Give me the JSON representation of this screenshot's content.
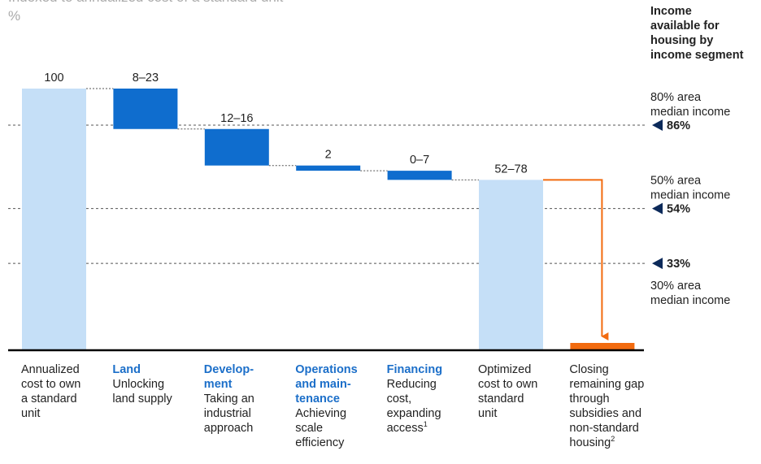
{
  "chart_data": {
    "type": "waterfall",
    "subtitle": [
      "Indexed to annualized cost of a standard unit",
      "%"
    ],
    "side_heading": [
      "Income",
      "available for",
      "housing by",
      "income segment"
    ],
    "categories": [
      {
        "heading": [],
        "lines": [
          "Annualized",
          "cost to own",
          "a standard",
          "unit"
        ]
      },
      {
        "heading": [
          "Land"
        ],
        "lines": [
          "Unlocking",
          "land supply"
        ]
      },
      {
        "heading": [
          "Develop-",
          "ment"
        ],
        "lines": [
          "Taking an",
          "industrial",
          "approach"
        ]
      },
      {
        "heading": [
          "Operations",
          "and main-",
          "tenance"
        ],
        "lines": [
          "Achieving",
          "scale",
          "efficiency"
        ]
      },
      {
        "heading": [
          "Financing"
        ],
        "lines": [
          "Reducing",
          "cost,",
          "expanding",
          "access"
        ],
        "note": "1"
      },
      {
        "heading": [],
        "lines": [
          "Optimized",
          "cost to own",
          "standard",
          "unit"
        ]
      },
      {
        "heading": [],
        "lines": [
          "Closing",
          "remaining gap",
          "through",
          "subsidies and",
          "non-standard",
          "housing"
        ],
        "note": "2"
      }
    ],
    "measure": [
      "total",
      "relative",
      "relative",
      "relative",
      "relative",
      "total",
      null
    ],
    "low": [
      100,
      8,
      12,
      2,
      0,
      52,
      null
    ],
    "high": [
      100,
      23,
      16,
      2,
      7,
      78,
      null
    ],
    "value_labels": [
      "100",
      "8–23",
      "12–16",
      "2",
      "0–7",
      "52–78",
      null
    ],
    "colors": {
      "total": "#c5dff7",
      "relative": "#0f6dce",
      "gap": "#f26b0f"
    },
    "ylim": [
      0,
      100
    ],
    "reference_lines": [
      {
        "tick": {
          "value": 86,
          "label": "86%"
        },
        "text": [
          "80% area",
          "median income"
        ],
        "side": "above"
      },
      {
        "tick": {
          "value": 54,
          "label": "54%"
        },
        "text": [
          "50% area",
          "median income"
        ],
        "side": "above"
      },
      {
        "tick": {
          "value": 33,
          "label": "33%"
        },
        "text": [
          "30% area",
          "median income"
        ],
        "side": "below"
      }
    ]
  }
}
